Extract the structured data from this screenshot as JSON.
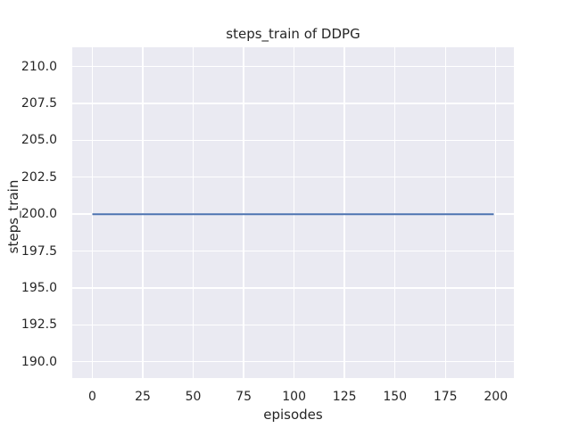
{
  "chart_data": {
    "type": "line",
    "title": "steps_train of DDPG",
    "xlabel": "episodes",
    "ylabel": "steps_train",
    "x_ticks": [
      0,
      25,
      50,
      75,
      100,
      125,
      150,
      175,
      200
    ],
    "x_tick_labels": [
      "0",
      "25",
      "50",
      "75",
      "100",
      "125",
      "150",
      "175",
      "200"
    ],
    "y_ticks": [
      190.0,
      192.5,
      195.0,
      197.5,
      200.0,
      202.5,
      205.0,
      207.5,
      210.0
    ],
    "y_tick_labels": [
      "190.0",
      "192.5",
      "195.0",
      "197.5",
      "200.0",
      "202.5",
      "205.0",
      "207.5",
      "210.0"
    ],
    "xlim": [
      -9.95,
      208.95
    ],
    "ylim": [
      188.9,
      211.3
    ],
    "grid": true,
    "legend": "none",
    "plot_background": "#EAEAF2",
    "gridline_color": "#FFFFFF",
    "text_color": "#262626",
    "series": [
      {
        "name": "steps_train",
        "color": "#4C72B0",
        "line_width": 2,
        "x": [
          0,
          199
        ],
        "y": [
          200,
          200
        ],
        "note": "constant value 200 for all episodes from 0 to 199"
      }
    ]
  }
}
